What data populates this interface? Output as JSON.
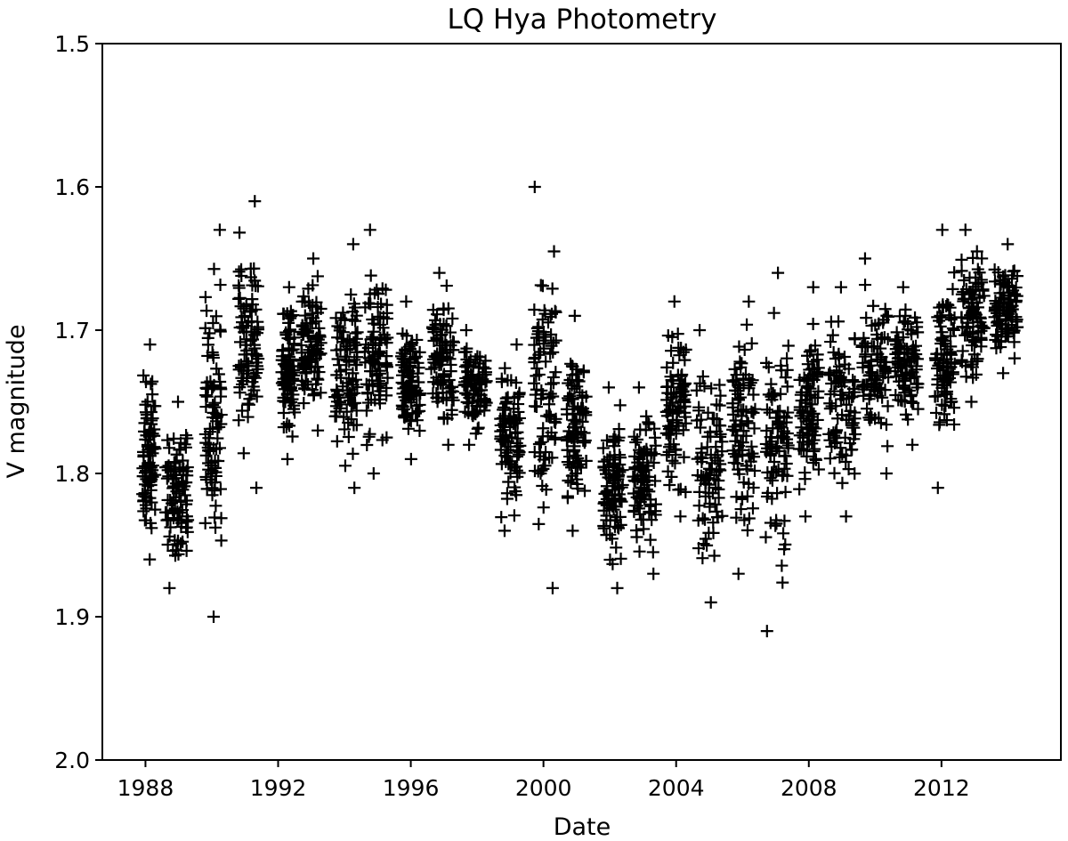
{
  "chart_data": {
    "type": "scatter",
    "title": "LQ Hya Photometry",
    "xlabel": "Date",
    "ylabel": "V magnitude",
    "xlim": [
      1986.7,
      2015.6
    ],
    "ylim": [
      2.0,
      1.5
    ],
    "y_inverted": true,
    "x_ticks": [
      1988,
      1992,
      1996,
      2000,
      2004,
      2008,
      2012
    ],
    "y_ticks": [
      1.5,
      1.6,
      1.7,
      1.8,
      1.9,
      2.0
    ],
    "y_tick_labels": [
      "1.5",
      "1.6",
      "1.7",
      "1.8",
      "1.9",
      "2.0"
    ],
    "grid": false,
    "marker": "+",
    "marker_color": "#000000",
    "seasons": [
      {
        "x": [
          1987.9,
          1988.3
        ],
        "y_range": [
          1.71,
          1.86
        ]
      },
      {
        "x": [
          1988.6,
          1989.3
        ],
        "y_range": [
          1.75,
          1.88
        ]
      },
      {
        "x": [
          1989.8,
          1990.3
        ],
        "y_range": [
          1.63,
          1.9
        ]
      },
      {
        "x": [
          1990.8,
          1991.4
        ],
        "y_range": [
          1.61,
          1.81
        ]
      },
      {
        "x": [
          1992.1,
          1992.5
        ],
        "y_range": [
          1.67,
          1.79
        ]
      },
      {
        "x": [
          1992.7,
          1993.3
        ],
        "y_range": [
          1.65,
          1.77
        ]
      },
      {
        "x": [
          1993.7,
          1994.4
        ],
        "y_range": [
          1.64,
          1.81
        ]
      },
      {
        "x": [
          1994.6,
          1995.3
        ],
        "y_range": [
          1.63,
          1.8
        ]
      },
      {
        "x": [
          1995.7,
          1996.3
        ],
        "y_range": [
          1.68,
          1.79
        ]
      },
      {
        "x": [
          1996.6,
          1997.3
        ],
        "y_range": [
          1.66,
          1.78
        ]
      },
      {
        "x": [
          1997.6,
          1998.3
        ],
        "y_range": [
          1.7,
          1.78
        ]
      },
      {
        "x": [
          1998.7,
          1999.3
        ],
        "y_range": [
          1.71,
          1.84
        ]
      },
      {
        "x": [
          1999.7,
          2000.4
        ],
        "y_range": [
          1.6,
          1.88
        ]
      },
      {
        "x": [
          2000.7,
          2001.3
        ],
        "y_range": [
          1.69,
          1.84
        ]
      },
      {
        "x": [
          2001.8,
          2002.4
        ],
        "y_range": [
          1.74,
          1.88
        ]
      },
      {
        "x": [
          2002.7,
          2003.4
        ],
        "y_range": [
          1.74,
          1.87
        ]
      },
      {
        "x": [
          2003.7,
          2004.3
        ],
        "y_range": [
          1.68,
          1.83
        ]
      },
      {
        "x": [
          2004.6,
          2005.4
        ],
        "y_range": [
          1.7,
          1.89
        ]
      },
      {
        "x": [
          2005.7,
          2006.4
        ],
        "y_range": [
          1.68,
          1.87
        ]
      },
      {
        "x": [
          2006.7,
          2007.4
        ],
        "y_range": [
          1.66,
          1.91
        ]
      },
      {
        "x": [
          2007.7,
          2008.3
        ],
        "y_range": [
          1.67,
          1.83
        ]
      },
      {
        "x": [
          2008.6,
          2009.4
        ],
        "y_range": [
          1.67,
          1.83
        ]
      },
      {
        "x": [
          2009.6,
          2010.4
        ],
        "y_range": [
          1.65,
          1.8
        ]
      },
      {
        "x": [
          2010.6,
          2011.3
        ],
        "y_range": [
          1.67,
          1.78
        ]
      },
      {
        "x": [
          2011.8,
          2012.4
        ],
        "y_range": [
          1.63,
          1.81
        ]
      },
      {
        "x": [
          2012.6,
          2013.3
        ],
        "y_range": [
          1.63,
          1.75
        ]
      },
      {
        "x": [
          2013.6,
          2014.3
        ],
        "y_range": [
          1.64,
          1.73
        ]
      }
    ]
  }
}
